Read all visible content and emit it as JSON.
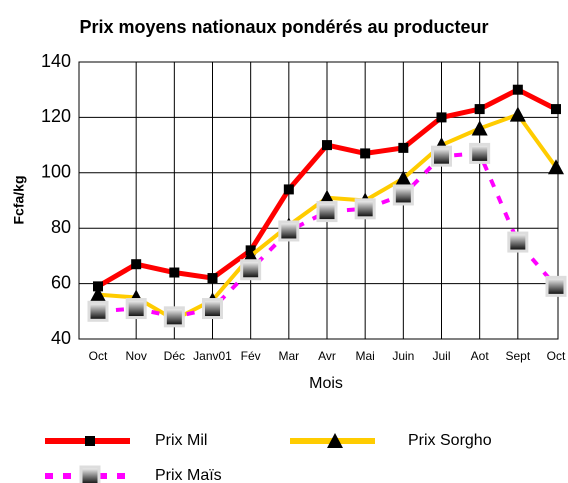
{
  "chart_data": {
    "type": "line",
    "title": "Prix moyens nationaux pondérés au producteur",
    "x_label": "Mois",
    "y_label": "Fcfa/kg",
    "categories": [
      "Oct",
      "Nov",
      "Déc",
      "Janv01",
      "Fév",
      "Mar",
      "Avr",
      "Mai",
      "Juin",
      "Juil",
      "Aot",
      "Sept",
      "Oct"
    ],
    "series": [
      {
        "name": "Prix Mil",
        "color": "#ff0000",
        "marker": "square",
        "dash": false,
        "values": [
          59,
          67,
          64,
          62,
          72,
          94,
          110,
          107,
          109,
          120,
          123,
          130,
          123
        ]
      },
      {
        "name": "Prix Sorgho",
        "color": "#ffcc00",
        "marker": "triangle",
        "dash": false,
        "values": [
          56,
          55,
          47,
          54,
          70,
          81,
          91,
          90,
          98,
          110,
          116,
          121,
          102
        ]
      },
      {
        "name": "Prix Maïs",
        "color": "#ff00ff",
        "marker": "gradient-square",
        "dash": true,
        "values": [
          50,
          51,
          48,
          51,
          65,
          79,
          86,
          87,
          92,
          106,
          107,
          75,
          59
        ]
      }
    ],
    "ylim": [
      40,
      140
    ],
    "yticks": [
      40,
      60,
      80,
      100,
      120,
      140
    ],
    "grid": true,
    "legend": "bottom"
  }
}
